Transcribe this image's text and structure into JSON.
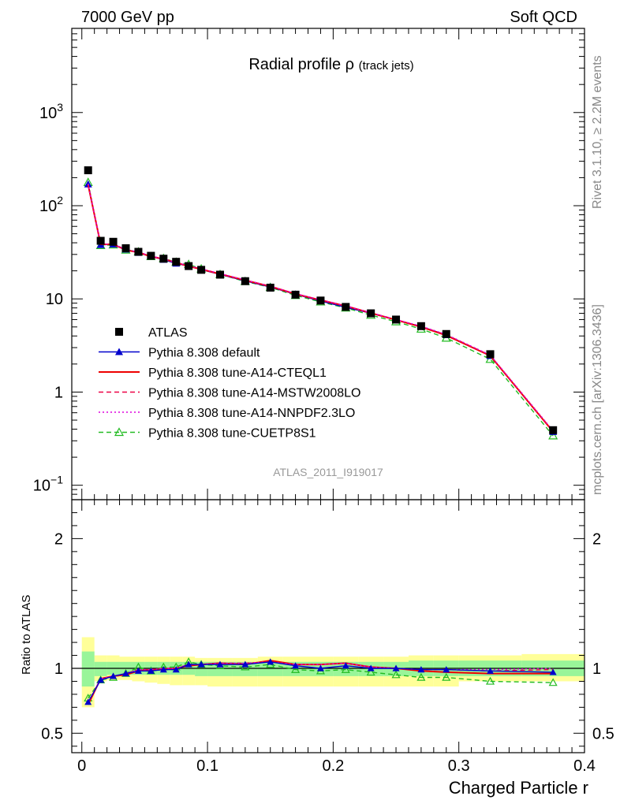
{
  "header": {
    "left": "7000 GeV pp",
    "right": "Soft QCD"
  },
  "side_labels": {
    "rivet": "Rivet 3.1.10, ≥ 2.2M events",
    "mcplots": "mcplots.cern.ch [arXiv:1306.3436]"
  },
  "chart_data": [
    {
      "type": "scatter",
      "panel": "main",
      "title": "Radial profile",
      "title_symbol": "ρ",
      "title_suffix": "(track jets)",
      "analysis_id": "ATLAS_2011_I919017",
      "log_y": true,
      "ylim": [
        0.07,
        8000
      ],
      "xlim": [
        -0.008,
        0.4
      ],
      "y_tick_labels": [
        "10^-1",
        "1",
        "10",
        "10^2",
        "10^3"
      ],
      "x": [
        0.005,
        0.015,
        0.025,
        0.035,
        0.045,
        0.055,
        0.065,
        0.075,
        0.085,
        0.095,
        0.11,
        0.13,
        0.15,
        0.17,
        0.19,
        0.21,
        0.23,
        0.25,
        0.27,
        0.29,
        0.325,
        0.375
      ],
      "legend_position": "lower-left",
      "series": [
        {
          "name": "ATLAS",
          "color": "#000000",
          "marker": "square",
          "line": "none",
          "values": [
            240,
            42,
            41,
            35,
            32,
            29,
            27,
            25,
            22.5,
            20.5,
            18.2,
            15.5,
            13.2,
            11.1,
            9.6,
            8.2,
            7.0,
            6.0,
            5.1,
            4.2,
            2.55,
            0.39
          ]
        },
        {
          "name": "Pythia 8.308 default",
          "color": "#0000cc",
          "marker": "triangle-filled",
          "line": "solid",
          "values": [
            170,
            38,
            38.5,
            34,
            31.3,
            28.5,
            26.4,
            24.0,
            22.5,
            20.6,
            18.3,
            15.6,
            13.4,
            11.2,
            9.5,
            8.1,
            7.0,
            5.95,
            5.05,
            4.1,
            2.45,
            0.375
          ]
        },
        {
          "name": "Pythia 8.308 tune-A14-CTEQL1",
          "color": "#ee0000",
          "marker": "none",
          "line": "solid",
          "values": [
            168,
            38.5,
            38.5,
            33.5,
            31.5,
            28.5,
            26.8,
            24.5,
            22.4,
            20.8,
            18.5,
            15.8,
            13.6,
            11.3,
            9.7,
            8.4,
            7.05,
            5.95,
            5.0,
            4.05,
            2.45,
            0.375
          ]
        },
        {
          "name": "Pythia 8.308 tune-A14-MSTW2008LO",
          "color": "#ee0044",
          "marker": "none",
          "line": "dashed",
          "values": [
            170,
            38.5,
            38.5,
            33.8,
            31.8,
            28.8,
            26.8,
            24.5,
            22.6,
            21.0,
            18.6,
            15.9,
            13.7,
            11.3,
            9.8,
            8.4,
            7.1,
            6.0,
            5.05,
            4.12,
            2.48,
            0.38
          ]
        },
        {
          "name": "Pythia 8.308 tune-A14-NNPDF2.3LO",
          "color": "#dd00dd",
          "marker": "none",
          "line": "dotted",
          "values": [
            172,
            38.7,
            38.6,
            33.9,
            31.8,
            28.8,
            26.9,
            24.6,
            22.7,
            21.0,
            18.7,
            16.0,
            13.7,
            11.4,
            9.8,
            8.45,
            7.1,
            6.0,
            5.1,
            4.15,
            2.5,
            0.385
          ]
        },
        {
          "name": "Pythia 8.308 tune-CUETP8S1",
          "color": "#22bb22",
          "marker": "triangle-open",
          "line": "dashed",
          "values": [
            178,
            37.5,
            38.0,
            33.5,
            32.0,
            28.5,
            27.2,
            24.8,
            23.5,
            21.0,
            18.3,
            15.4,
            13.3,
            10.9,
            9.3,
            8.0,
            6.7,
            5.7,
            4.75,
            3.8,
            2.25,
            0.34
          ]
        }
      ]
    },
    {
      "type": "line",
      "panel": "ratio",
      "ylabel": "Ratio to ATLAS",
      "xlabel": "Charged Particle r",
      "ylim": [
        0.35,
        2.3
      ],
      "xlim": [
        -0.008,
        0.4
      ],
      "x_ticks": [
        0,
        0.1,
        0.2,
        0.3,
        0.4
      ],
      "x_tick_labels": [
        "0",
        "0.1",
        "0.2",
        "0.3",
        "0.4"
      ],
      "y_ticks": [
        0.5,
        1,
        2
      ],
      "y_tick_labels": [
        "0.5",
        "1",
        "2"
      ],
      "x_edges": [
        0.0,
        0.01,
        0.02,
        0.03,
        0.04,
        0.05,
        0.06,
        0.07,
        0.08,
        0.09,
        0.1,
        0.12,
        0.14,
        0.16,
        0.18,
        0.2,
        0.22,
        0.24,
        0.26,
        0.28,
        0.3,
        0.35,
        0.4
      ],
      "band_outer": [
        [
          0.7,
          1.24
        ],
        [
          0.9,
          1.1
        ],
        [
          0.91,
          1.1
        ],
        [
          0.91,
          1.09
        ],
        [
          0.9,
          1.09
        ],
        [
          0.89,
          1.09
        ],
        [
          0.88,
          1.09
        ],
        [
          0.87,
          1.09
        ],
        [
          0.87,
          1.09
        ],
        [
          0.87,
          1.08
        ],
        [
          0.86,
          1.08
        ],
        [
          0.86,
          1.08
        ],
        [
          0.86,
          1.09
        ],
        [
          0.86,
          1.09
        ],
        [
          0.86,
          1.09
        ],
        [
          0.86,
          1.09
        ],
        [
          0.86,
          1.09
        ],
        [
          0.86,
          1.09
        ],
        [
          0.86,
          1.1
        ],
        [
          0.86,
          1.1
        ],
        [
          0.9,
          1.1
        ],
        [
          0.9,
          1.11
        ]
      ],
      "band_inner": [
        [
          0.86,
          1.13
        ],
        [
          0.94,
          1.05
        ],
        [
          0.95,
          1.05
        ],
        [
          0.95,
          1.05
        ],
        [
          0.95,
          1.05
        ],
        [
          0.95,
          1.05
        ],
        [
          0.95,
          1.05
        ],
        [
          0.95,
          1.05
        ],
        [
          0.95,
          1.05
        ],
        [
          0.94,
          1.05
        ],
        [
          0.94,
          1.05
        ],
        [
          0.94,
          1.05
        ],
        [
          0.94,
          1.05
        ],
        [
          0.94,
          1.05
        ],
        [
          0.94,
          1.05
        ],
        [
          0.94,
          1.05
        ],
        [
          0.94,
          1.05
        ],
        [
          0.94,
          1.05
        ],
        [
          0.94,
          1.06
        ],
        [
          0.94,
          1.06
        ],
        [
          0.94,
          1.06
        ],
        [
          0.94,
          1.06
        ]
      ],
      "band_colors": {
        "outer": "#ffff99",
        "inner": "#99f599"
      },
      "x": [
        0.005,
        0.015,
        0.025,
        0.035,
        0.045,
        0.055,
        0.065,
        0.075,
        0.085,
        0.095,
        0.11,
        0.13,
        0.15,
        0.17,
        0.19,
        0.21,
        0.23,
        0.25,
        0.27,
        0.29,
        0.325,
        0.375
      ],
      "series": [
        {
          "name": "Pythia 8.308 default",
          "color": "#0000cc",
          "marker": "triangle-filled",
          "line": "solid",
          "values": [
            0.74,
            0.91,
            0.94,
            0.96,
            0.98,
            0.98,
            0.99,
            0.99,
            1.03,
            1.03,
            1.03,
            1.03,
            1.05,
            1.02,
            1.0,
            1.02,
            1.0,
            1.0,
            0.99,
            0.99,
            0.98,
            0.97
          ]
        },
        {
          "name": "Pythia 8.308 tune-A14-CTEQL1",
          "color": "#ee0000",
          "marker": "none",
          "line": "solid",
          "values": [
            0.72,
            0.92,
            0.94,
            0.95,
            0.98,
            0.99,
            0.99,
            1.0,
            1.02,
            1.03,
            1.04,
            1.03,
            1.06,
            1.03,
            1.03,
            1.04,
            1.01,
            1.0,
            0.98,
            0.97,
            0.96,
            0.96
          ]
        },
        {
          "name": "Pythia 8.308 tune-A14-MSTW2008LO",
          "color": "#ee0044",
          "marker": "none",
          "line": "dashed",
          "values": [
            0.73,
            0.92,
            0.94,
            0.96,
            0.99,
            0.99,
            1.0,
            1.0,
            1.03,
            1.03,
            1.04,
            1.04,
            1.05,
            1.03,
            1.03,
            1.04,
            1.01,
            1.0,
            0.99,
            0.99,
            0.98,
            0.99
          ]
        },
        {
          "name": "Pythia 8.308 tune-A14-NNPDF2.3LO",
          "color": "#dd00dd",
          "marker": "none",
          "line": "dotted",
          "values": [
            0.74,
            0.92,
            0.94,
            0.96,
            0.99,
            0.99,
            1.0,
            1.0,
            1.03,
            1.03,
            1.04,
            1.04,
            1.05,
            1.03,
            1.03,
            1.04,
            1.01,
            1.0,
            0.99,
            0.99,
            0.99,
            1.0
          ]
        },
        {
          "name": "Pythia 8.308 tune-CUETP8S1",
          "color": "#22bb22",
          "marker": "triangle-open",
          "line": "dashed",
          "values": [
            0.77,
            0.91,
            0.93,
            0.96,
            1.01,
            0.98,
            1.01,
            1.01,
            1.05,
            1.03,
            1.02,
            1.01,
            1.03,
            0.99,
            0.98,
            0.99,
            0.97,
            0.95,
            0.93,
            0.93,
            0.9,
            0.89
          ]
        }
      ]
    }
  ]
}
